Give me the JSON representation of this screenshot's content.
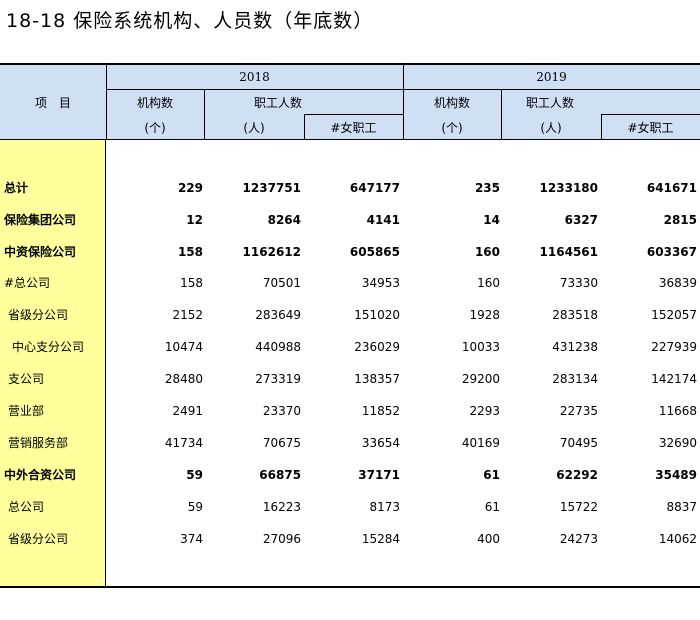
{
  "title": "18-18  保险系统机构、人员数（年底数）",
  "header": {
    "item": "项　目",
    "year1": "2018",
    "year2": "2019",
    "institutions": "机构数",
    "employees": "职工人数",
    "female": "#女职工",
    "unit_count": "(个)",
    "unit_person": "(人)"
  },
  "rows": [
    {
      "label": "总计",
      "v": [
        "229",
        "1237751",
        "647177",
        "235",
        "1233180",
        "641671"
      ]
    },
    {
      "label": "保险集团公司",
      "v": [
        "12",
        "8264",
        "4141",
        "14",
        "6327",
        "2815"
      ]
    },
    {
      "label": "中资保险公司",
      "v": [
        "158",
        "1162612",
        "605865",
        "160",
        "1164561",
        "603367"
      ]
    },
    {
      "label": "#总公司",
      "v": [
        "158",
        "70501",
        "34953",
        "160",
        "73330",
        "36839"
      ]
    },
    {
      "label": "省级分公司",
      "v": [
        "2152",
        "283649",
        "151020",
        "1928",
        "283518",
        "152057"
      ]
    },
    {
      "label": "中心支分公司",
      "v": [
        "10474",
        "440988",
        "236029",
        "10033",
        "431238",
        "227939"
      ]
    },
    {
      "label": "支公司",
      "v": [
        "28480",
        "273319",
        "138357",
        "29200",
        "283134",
        "142174"
      ]
    },
    {
      "label": "营业部",
      "v": [
        "2491",
        "23370",
        "11852",
        "2293",
        "22735",
        "11668"
      ]
    },
    {
      "label": "营销服务部",
      "v": [
        "41734",
        "70675",
        "33654",
        "40169",
        "70495",
        "32690"
      ]
    },
    {
      "label": "中外合资公司",
      "v": [
        "59",
        "66875",
        "37171",
        "61",
        "62292",
        "35489"
      ]
    },
    {
      "label": "总公司",
      "v": [
        "59",
        "16223",
        "8173",
        "61",
        "15722",
        "8837"
      ]
    },
    {
      "label": "省级分公司",
      "v": [
        "374",
        "27096",
        "15284",
        "400",
        "24273",
        "14062"
      ]
    }
  ]
}
